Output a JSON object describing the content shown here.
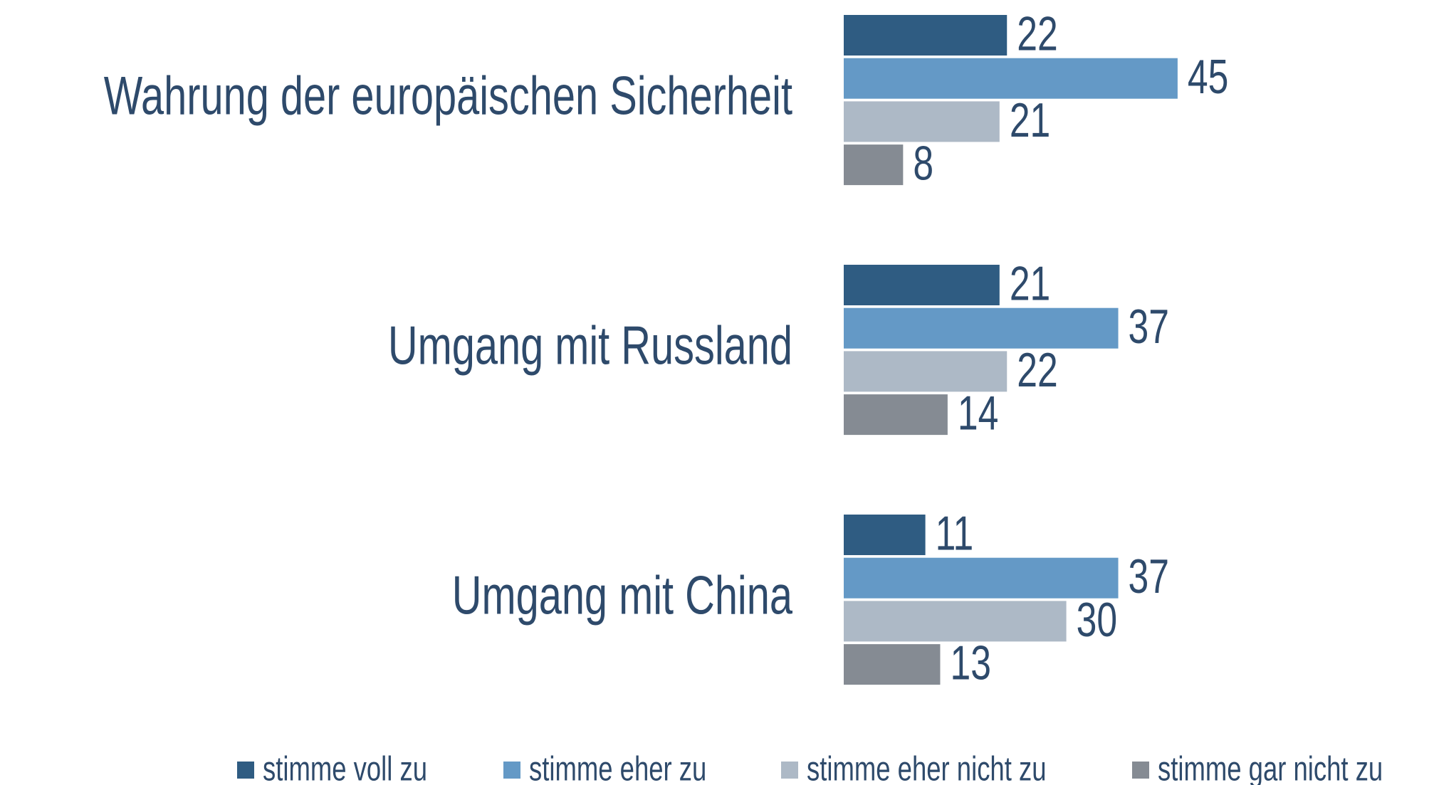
{
  "chart_data": {
    "type": "bar",
    "orientation": "horizontal",
    "categories": [
      "Wahrung der europäischen Sicherheit",
      "Umgang mit Russland",
      "Umgang mit China"
    ],
    "series": [
      {
        "name": "stimme voll zu",
        "color": "#2f5c82",
        "values": [
          22,
          21,
          11
        ]
      },
      {
        "name": "stimme eher zu",
        "color": "#6499c6",
        "values": [
          45,
          37,
          37
        ]
      },
      {
        "name": "stimme eher nicht zu",
        "color": "#adb9c6",
        "values": [
          21,
          22,
          30
        ]
      },
      {
        "name": "stimme gar nicht zu",
        "color": "#858b93",
        "values": [
          8,
          14,
          13
        ]
      }
    ]
  }
}
